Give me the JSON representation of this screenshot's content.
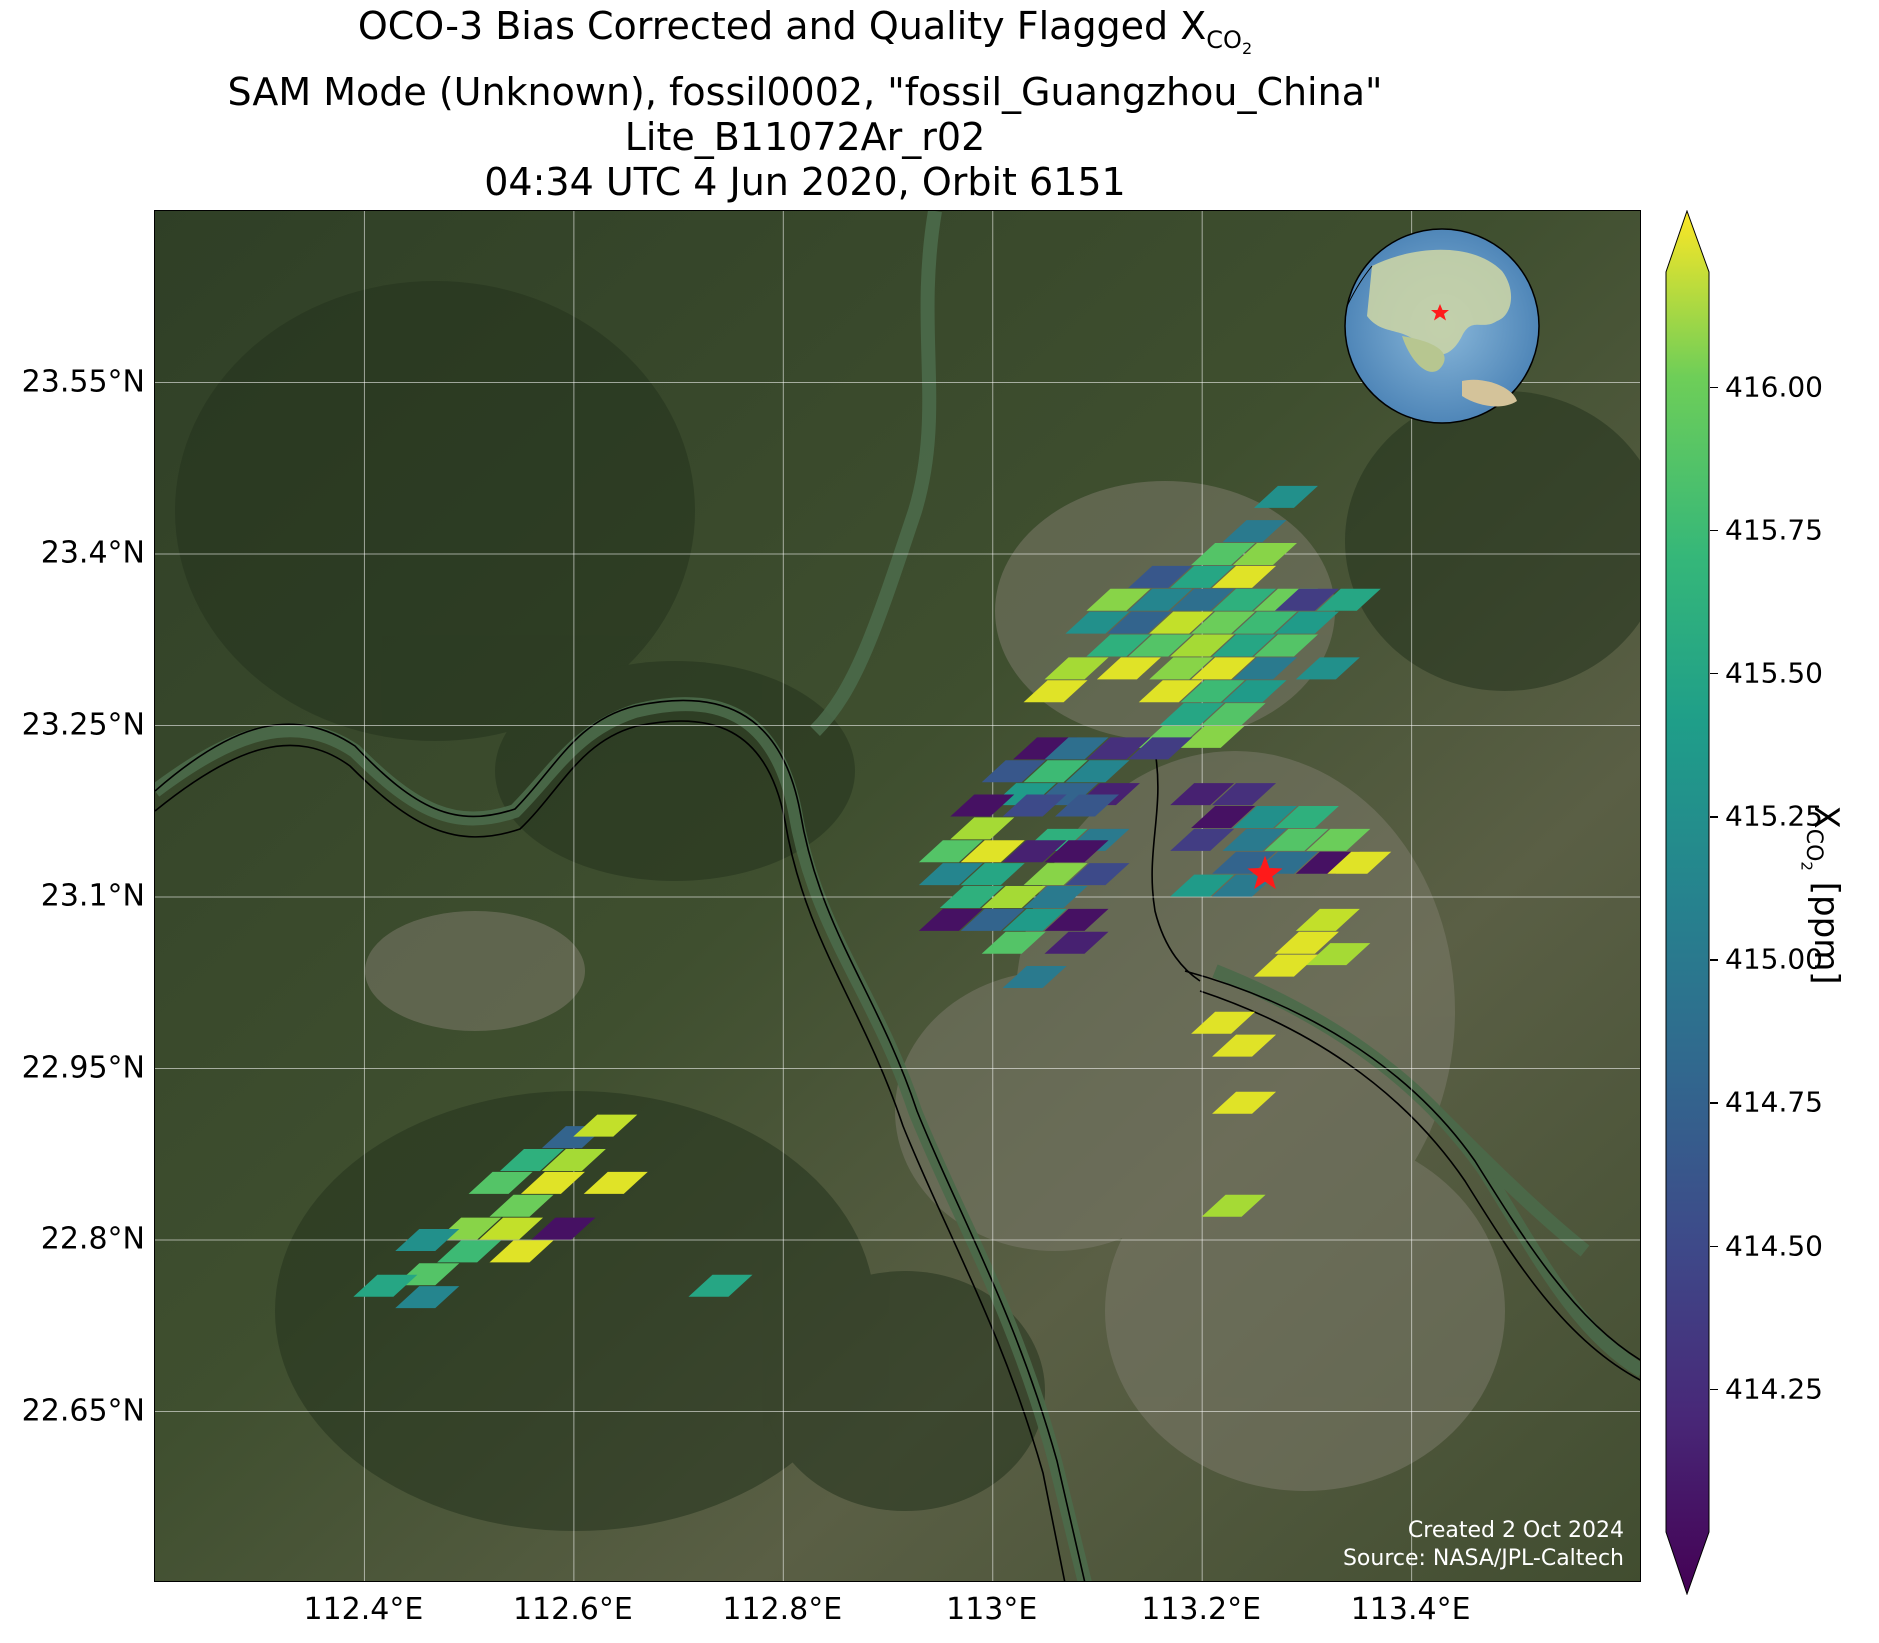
{
  "title": {
    "line1_prefix": "OCO-3 Bias Corrected and Quality Flagged X",
    "line1_sub": "CO",
    "line1_sub2": "2",
    "line2": "SAM Mode (Unknown), fossil0002, \"fossil_Guangzhou_China\"",
    "line3": "Lite_B11072Ar_r02",
    "line4": "04:34 UTC 4 Jun 2020, Orbit 6151"
  },
  "map": {
    "lon_range": [
      112.2,
      113.62
    ],
    "lat_range": [
      22.5,
      23.7
    ],
    "lat_ticks": [
      "23.55°N",
      "23.4°N",
      "23.25°N",
      "23.1°N",
      "22.95°N",
      "22.8°N",
      "22.65°N"
    ],
    "lat_values": [
      23.55,
      23.4,
      23.25,
      23.1,
      22.95,
      22.8,
      22.65
    ],
    "lon_ticks": [
      "112.4°E",
      "112.6°E",
      "112.8°E",
      "113°E",
      "113.2°E",
      "113.4°E"
    ],
    "lon_values": [
      112.4,
      112.6,
      112.8,
      113.0,
      113.2,
      113.4
    ],
    "grid": true,
    "target_marker": "red-star",
    "inset": "globe-locator",
    "credit_line1": "Created 2 Oct 2024",
    "credit_line2": "Source: NASA/JPL-Caltech"
  },
  "colorbar": {
    "label_prefix": "X",
    "label_sub": "CO",
    "label_sub2": "2",
    "label_suffix": " [ppm]",
    "range": [
      414.0,
      416.2
    ],
    "ticks": [
      "416.00",
      "415.75",
      "415.50",
      "415.25",
      "415.00",
      "414.75",
      "414.50",
      "414.25"
    ],
    "tick_values": [
      416.0,
      415.75,
      415.5,
      415.25,
      415.0,
      414.75,
      414.5,
      414.25
    ],
    "colormap": "viridis"
  },
  "chart_data": {
    "type": "heatmap",
    "variable": "XCO2 (ppm)",
    "target": {
      "lon": 113.26,
      "lat": 23.12
    },
    "footprints": [
      {
        "lon": 113.28,
        "lat": 23.45,
        "v": 415.1
      },
      {
        "lon": 113.25,
        "lat": 23.42,
        "v": 414.9
      },
      {
        "lon": 113.22,
        "lat": 23.4,
        "v": 415.6
      },
      {
        "lon": 113.26,
        "lat": 23.4,
        "v": 415.8
      },
      {
        "lon": 113.16,
        "lat": 23.38,
        "v": 414.6
      },
      {
        "lon": 113.2,
        "lat": 23.38,
        "v": 415.3
      },
      {
        "lon": 113.24,
        "lat": 23.38,
        "v": 416.1
      },
      {
        "lon": 113.28,
        "lat": 23.36,
        "v": 415.7
      },
      {
        "lon": 113.12,
        "lat": 23.36,
        "v": 415.8
      },
      {
        "lon": 113.16,
        "lat": 23.36,
        "v": 415.0
      },
      {
        "lon": 113.2,
        "lat": 23.36,
        "v": 414.8
      },
      {
        "lon": 113.24,
        "lat": 23.36,
        "v": 415.4
      },
      {
        "lon": 113.3,
        "lat": 23.36,
        "v": 414.4
      },
      {
        "lon": 113.34,
        "lat": 23.36,
        "v": 415.3
      },
      {
        "lon": 113.1,
        "lat": 23.34,
        "v": 415.1
      },
      {
        "lon": 113.14,
        "lat": 23.34,
        "v": 414.7
      },
      {
        "lon": 113.18,
        "lat": 23.34,
        "v": 416.0
      },
      {
        "lon": 113.22,
        "lat": 23.34,
        "v": 415.7
      },
      {
        "lon": 113.26,
        "lat": 23.34,
        "v": 415.5
      },
      {
        "lon": 113.3,
        "lat": 23.34,
        "v": 415.2
      },
      {
        "lon": 113.12,
        "lat": 23.32,
        "v": 415.4
      },
      {
        "lon": 113.16,
        "lat": 23.32,
        "v": 415.6
      },
      {
        "lon": 113.2,
        "lat": 23.32,
        "v": 415.9
      },
      {
        "lon": 113.24,
        "lat": 23.32,
        "v": 415.3
      },
      {
        "lon": 113.28,
        "lat": 23.32,
        "v": 415.6
      },
      {
        "lon": 113.08,
        "lat": 23.3,
        "v": 415.9
      },
      {
        "lon": 113.13,
        "lat": 23.3,
        "v": 416.1
      },
      {
        "lon": 113.18,
        "lat": 23.3,
        "v": 415.8
      },
      {
        "lon": 113.22,
        "lat": 23.3,
        "v": 416.1
      },
      {
        "lon": 113.26,
        "lat": 23.3,
        "v": 414.9
      },
      {
        "lon": 113.32,
        "lat": 23.3,
        "v": 415.1
      },
      {
        "lon": 113.06,
        "lat": 23.28,
        "v": 416.1
      },
      {
        "lon": 113.17,
        "lat": 23.28,
        "v": 416.1
      },
      {
        "lon": 113.21,
        "lat": 23.28,
        "v": 415.5
      },
      {
        "lon": 113.25,
        "lat": 23.28,
        "v": 415.2
      },
      {
        "lon": 113.19,
        "lat": 23.26,
        "v": 415.3
      },
      {
        "lon": 113.23,
        "lat": 23.26,
        "v": 415.6
      },
      {
        "lon": 113.17,
        "lat": 23.24,
        "v": 415.7
      },
      {
        "lon": 113.21,
        "lat": 23.24,
        "v": 415.8
      },
      {
        "lon": 113.05,
        "lat": 23.23,
        "v": 414.1
      },
      {
        "lon": 113.08,
        "lat": 23.23,
        "v": 414.8
      },
      {
        "lon": 113.12,
        "lat": 23.23,
        "v": 414.3
      },
      {
        "lon": 113.16,
        "lat": 23.23,
        "v": 414.4
      },
      {
        "lon": 113.02,
        "lat": 23.21,
        "v": 414.6
      },
      {
        "lon": 113.06,
        "lat": 23.21,
        "v": 415.5
      },
      {
        "lon": 113.1,
        "lat": 23.21,
        "v": 415.0
      },
      {
        "lon": 113.03,
        "lat": 23.19,
        "v": 415.2
      },
      {
        "lon": 113.07,
        "lat": 23.19,
        "v": 414.7
      },
      {
        "lon": 113.11,
        "lat": 23.19,
        "v": 414.2
      },
      {
        "lon": 112.99,
        "lat": 23.18,
        "v": 414.1
      },
      {
        "lon": 113.04,
        "lat": 23.18,
        "v": 414.5
      },
      {
        "lon": 113.09,
        "lat": 23.18,
        "v": 414.6
      },
      {
        "lon": 112.99,
        "lat": 23.16,
        "v": 415.9
      },
      {
        "lon": 113.06,
        "lat": 23.15,
        "v": 415.4
      },
      {
        "lon": 113.1,
        "lat": 23.15,
        "v": 414.9
      },
      {
        "lon": 112.96,
        "lat": 23.14,
        "v": 415.6
      },
      {
        "lon": 113.0,
        "lat": 23.14,
        "v": 416.1
      },
      {
        "lon": 113.04,
        "lat": 23.14,
        "v": 414.2
      },
      {
        "lon": 113.08,
        "lat": 23.14,
        "v": 414.1
      },
      {
        "lon": 112.96,
        "lat": 23.12,
        "v": 415.0
      },
      {
        "lon": 113.0,
        "lat": 23.12,
        "v": 415.3
      },
      {
        "lon": 113.06,
        "lat": 23.12,
        "v": 415.8
      },
      {
        "lon": 113.1,
        "lat": 23.12,
        "v": 414.5
      },
      {
        "lon": 112.98,
        "lat": 23.1,
        "v": 415.4
      },
      {
        "lon": 113.02,
        "lat": 23.1,
        "v": 415.9
      },
      {
        "lon": 113.06,
        "lat": 23.1,
        "v": 414.9
      },
      {
        "lon": 112.96,
        "lat": 23.08,
        "v": 414.1
      },
      {
        "lon": 113.0,
        "lat": 23.08,
        "v": 414.7
      },
      {
        "lon": 113.04,
        "lat": 23.08,
        "v": 415.2
      },
      {
        "lon": 113.08,
        "lat": 23.08,
        "v": 414.1
      },
      {
        "lon": 113.02,
        "lat": 23.06,
        "v": 415.6
      },
      {
        "lon": 113.08,
        "lat": 23.06,
        "v": 414.2
      },
      {
        "lon": 113.2,
        "lat": 23.19,
        "v": 414.2
      },
      {
        "lon": 113.24,
        "lat": 23.19,
        "v": 414.3
      },
      {
        "lon": 113.22,
        "lat": 23.17,
        "v": 414.1
      },
      {
        "lon": 113.26,
        "lat": 23.17,
        "v": 415.1
      },
      {
        "lon": 113.3,
        "lat": 23.17,
        "v": 415.4
      },
      {
        "lon": 113.2,
        "lat": 23.15,
        "v": 414.4
      },
      {
        "lon": 113.25,
        "lat": 23.15,
        "v": 414.9
      },
      {
        "lon": 113.29,
        "lat": 23.15,
        "v": 415.6
      },
      {
        "lon": 113.33,
        "lat": 23.15,
        "v": 415.7
      },
      {
        "lon": 113.24,
        "lat": 23.13,
        "v": 414.7
      },
      {
        "lon": 113.28,
        "lat": 23.13,
        "v": 414.8
      },
      {
        "lon": 113.32,
        "lat": 23.13,
        "v": 414.1
      },
      {
        "lon": 113.2,
        "lat": 23.11,
        "v": 415.2
      },
      {
        "lon": 113.24,
        "lat": 23.11,
        "v": 414.9
      },
      {
        "lon": 113.35,
        "lat": 23.13,
        "v": 416.1
      },
      {
        "lon": 113.32,
        "lat": 23.08,
        "v": 416.0
      },
      {
        "lon": 113.3,
        "lat": 23.06,
        "v": 416.1
      },
      {
        "lon": 113.33,
        "lat": 23.05,
        "v": 415.9
      },
      {
        "lon": 113.28,
        "lat": 23.04,
        "v": 416.1
      },
      {
        "lon": 113.22,
        "lat": 22.99,
        "v": 416.1
      },
      {
        "lon": 113.24,
        "lat": 22.97,
        "v": 416.1
      },
      {
        "lon": 113.24,
        "lat": 22.92,
        "v": 416.1
      },
      {
        "lon": 113.23,
        "lat": 22.83,
        "v": 415.9
      },
      {
        "lon": 113.04,
        "lat": 23.03,
        "v": 414.9
      },
      {
        "lon": 112.6,
        "lat": 22.89,
        "v": 414.7
      },
      {
        "lon": 112.63,
        "lat": 22.9,
        "v": 416.0
      },
      {
        "lon": 112.56,
        "lat": 22.87,
        "v": 415.4
      },
      {
        "lon": 112.6,
        "lat": 22.87,
        "v": 415.9
      },
      {
        "lon": 112.53,
        "lat": 22.85,
        "v": 415.6
      },
      {
        "lon": 112.58,
        "lat": 22.85,
        "v": 416.1
      },
      {
        "lon": 112.64,
        "lat": 22.85,
        "v": 416.1
      },
      {
        "lon": 112.55,
        "lat": 22.83,
        "v": 415.7
      },
      {
        "lon": 112.5,
        "lat": 22.81,
        "v": 415.8
      },
      {
        "lon": 112.54,
        "lat": 22.81,
        "v": 416.0
      },
      {
        "lon": 112.59,
        "lat": 22.81,
        "v": 414.1
      },
      {
        "lon": 112.46,
        "lat": 22.8,
        "v": 415.1
      },
      {
        "lon": 112.5,
        "lat": 22.79,
        "v": 415.5
      },
      {
        "lon": 112.55,
        "lat": 22.79,
        "v": 416.1
      },
      {
        "lon": 112.46,
        "lat": 22.77,
        "v": 415.6
      },
      {
        "lon": 112.42,
        "lat": 22.76,
        "v": 415.3
      },
      {
        "lon": 112.46,
        "lat": 22.75,
        "v": 415.0
      },
      {
        "lon": 112.74,
        "lat": 22.76,
        "v": 415.3
      }
    ]
  }
}
